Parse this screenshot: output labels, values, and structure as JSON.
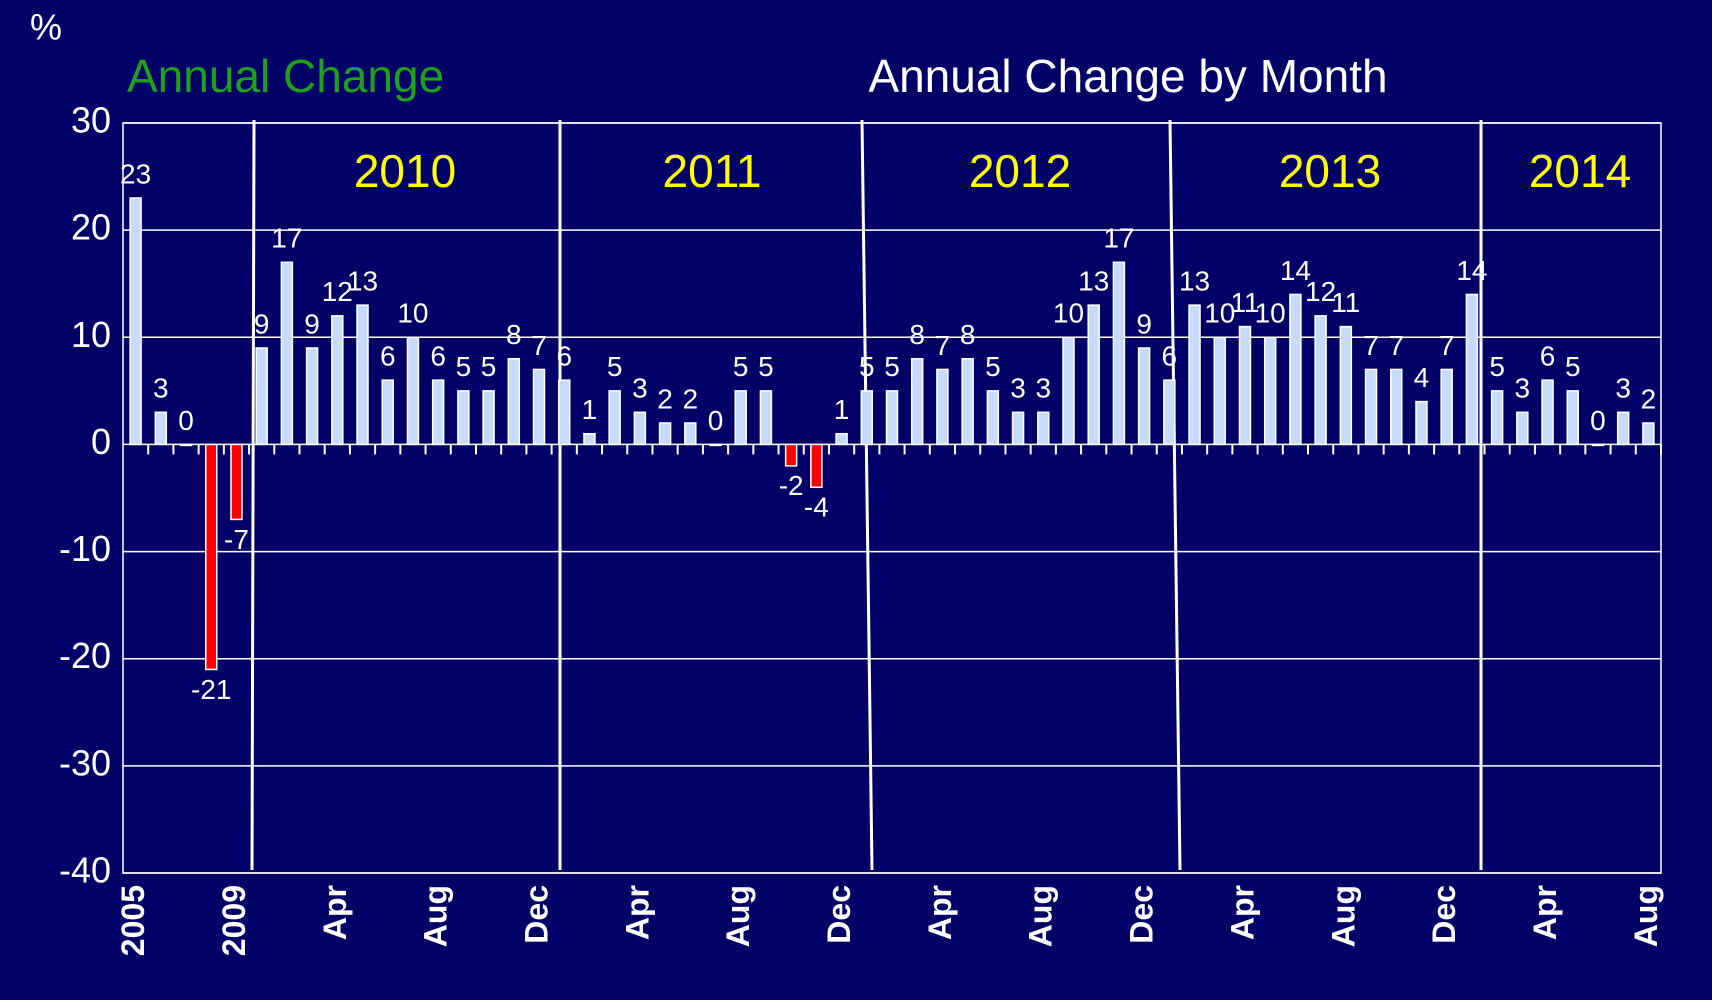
{
  "chart_data": {
    "type": "bar",
    "title": "Annual Change by Month",
    "subtitle": "Annual Change",
    "y_axis_label": "%",
    "annotations": [
      "2010",
      "2011",
      "2012",
      "2013",
      "2014"
    ],
    "categories": [
      "2005",
      null,
      null,
      null,
      "2009",
      null,
      null,
      null,
      "Apr",
      null,
      null,
      null,
      "Aug",
      null,
      null,
      null,
      "Dec",
      null,
      null,
      null,
      "Apr",
      null,
      null,
      null,
      "Aug",
      null,
      null,
      null,
      "Dec",
      null,
      null,
      null,
      "Apr",
      null,
      null,
      null,
      "Aug",
      null,
      null,
      null,
      "Dec",
      null,
      null,
      null,
      "Apr",
      null,
      null,
      null,
      "Aug",
      null,
      null,
      null,
      "Dec",
      null,
      null,
      null,
      "Apr",
      null,
      null,
      null,
      "Aug"
    ],
    "values": [
      23,
      3,
      0,
      -21,
      -7,
      9,
      17,
      9,
      12,
      13,
      6,
      10,
      6,
      5,
      5,
      8,
      7,
      6,
      1,
      5,
      3,
      2,
      2,
      0,
      5,
      5,
      -2,
      -4,
      1,
      5,
      5,
      8,
      7,
      8,
      5,
      3,
      3,
      10,
      13,
      17,
      9,
      6,
      13,
      10,
      11,
      10,
      14,
      12,
      11,
      7,
      7,
      4,
      7,
      14,
      5,
      3,
      6,
      5,
      0,
      3,
      2
    ],
    "color": "#c6dcfa",
    "negative_color": "#ff0000",
    "ylim": [
      -40,
      30
    ],
    "yticks": [
      -40,
      -30,
      -20,
      -10,
      0,
      10,
      20,
      30
    ],
    "grid": true
  }
}
